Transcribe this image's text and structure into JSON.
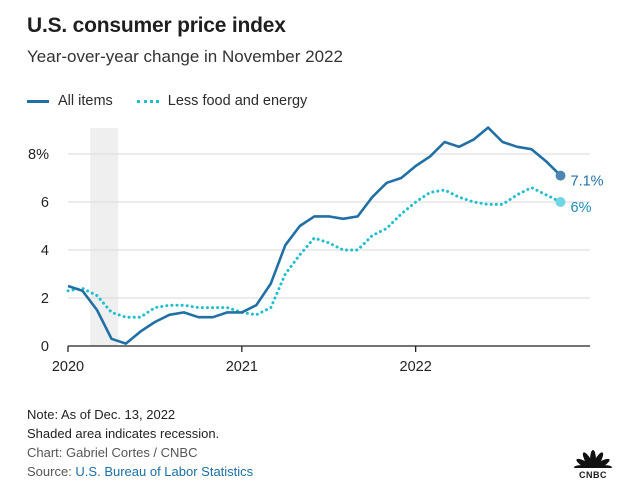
{
  "header": {
    "title": "U.S. consumer price index",
    "subtitle": "Year-over-year change in November 2022"
  },
  "legend": {
    "all_items": "All items",
    "core": "Less food and energy"
  },
  "colors": {
    "all_items": "#2070a6",
    "core": "#1fbfd0",
    "recession": "#efefef",
    "grid": "#d9d9d9",
    "axis": "#222222"
  },
  "chart_data": {
    "type": "line",
    "title": "U.S. consumer price index",
    "subtitle": "Year-over-year change in November 2022",
    "xlabel": "",
    "ylabel": "",
    "x": [
      "2020-01",
      "2020-02",
      "2020-03",
      "2020-04",
      "2020-05",
      "2020-06",
      "2020-07",
      "2020-08",
      "2020-09",
      "2020-10",
      "2020-11",
      "2020-12",
      "2021-01",
      "2021-02",
      "2021-03",
      "2021-04",
      "2021-05",
      "2021-06",
      "2021-07",
      "2021-08",
      "2021-09",
      "2021-10",
      "2021-11",
      "2021-12",
      "2022-01",
      "2022-02",
      "2022-03",
      "2022-04",
      "2022-05",
      "2022-06",
      "2022-07",
      "2022-08",
      "2022-09",
      "2022-10",
      "2022-11"
    ],
    "series": [
      {
        "name": "All items",
        "style": "solid",
        "values": [
          2.5,
          2.3,
          1.5,
          0.3,
          0.1,
          0.6,
          1.0,
          1.3,
          1.4,
          1.2,
          1.2,
          1.4,
          1.4,
          1.7,
          2.6,
          4.2,
          5.0,
          5.4,
          5.4,
          5.3,
          5.4,
          6.2,
          6.8,
          7.0,
          7.5,
          7.9,
          8.5,
          8.3,
          8.6,
          9.1,
          8.5,
          8.3,
          8.2,
          7.7,
          7.1
        ]
      },
      {
        "name": "Less food and energy",
        "style": "dotted",
        "values": [
          2.3,
          2.4,
          2.1,
          1.4,
          1.2,
          1.2,
          1.6,
          1.7,
          1.7,
          1.6,
          1.6,
          1.6,
          1.4,
          1.3,
          1.6,
          3.0,
          3.8,
          4.5,
          4.3,
          4.0,
          4.0,
          4.6,
          4.9,
          5.5,
          6.0,
          6.4,
          6.5,
          6.2,
          6.0,
          5.9,
          5.9,
          6.3,
          6.6,
          6.3,
          6.0
        ]
      }
    ],
    "end_labels": [
      "7.1%",
      "6%"
    ],
    "ylim": [
      0,
      9
    ],
    "y_ticks": [
      0,
      2,
      4,
      6,
      8
    ],
    "y_tick_labels": [
      "0",
      "2",
      "4",
      "6",
      "8%"
    ],
    "x_ticks": [
      "2020-01",
      "2021-01",
      "2022-01"
    ],
    "x_tick_labels": [
      "2020",
      "2021",
      "2022"
    ],
    "recession_shade": {
      "start": "2020-03",
      "end": "2020-04"
    },
    "grid": true,
    "legend_position": "top-left"
  },
  "footer": {
    "note": "Note: As of Dec. 13, 2022",
    "shaded": "Shaded area indicates recession.",
    "credit": "Chart: Gabriel Cortes / CNBC",
    "source_label": "Source: ",
    "source_link": "U.S. Bureau of Labor Statistics"
  },
  "logo": {
    "wordmark": "CNBC"
  }
}
